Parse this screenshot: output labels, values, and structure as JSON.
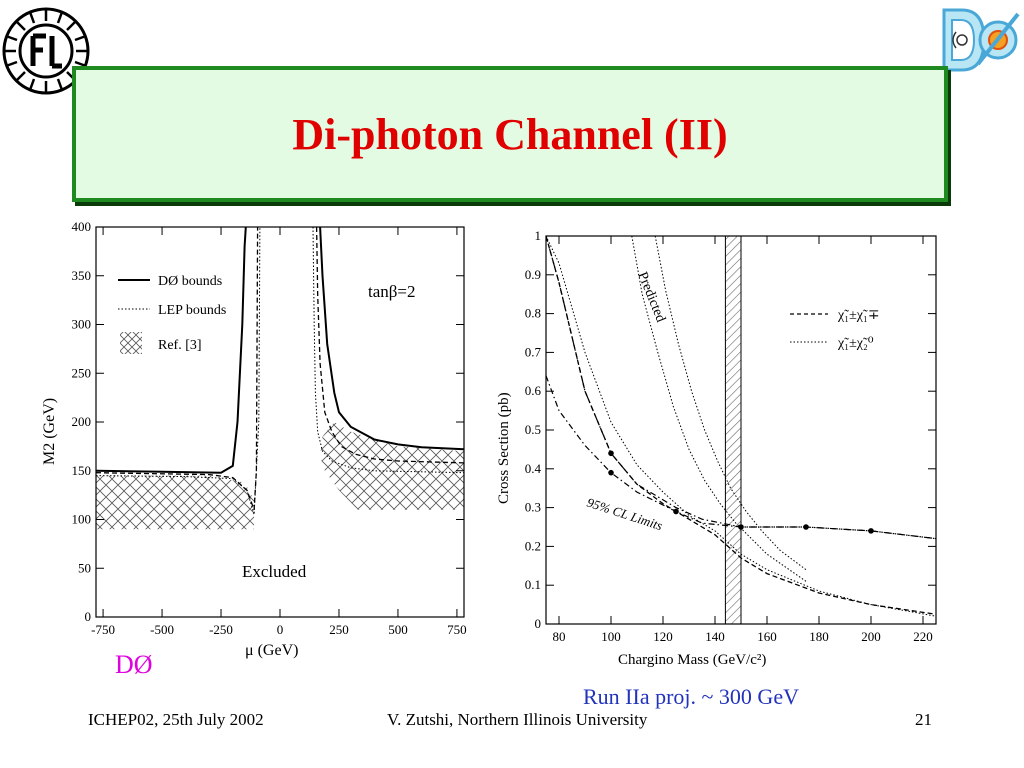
{
  "slide": {
    "title": "Di-photon Channel (II)",
    "d0_caption": "DØ",
    "run_note": "Run IIa proj. ~ 300 GeV",
    "footer_left": "ICHEP02, 25th July 2002",
    "footer_center": "V. Zutshi, Northern Illinois University",
    "page_number": "21",
    "colors": {
      "title": "#e00000",
      "title_border": "#1f8a1f",
      "title_bg": "#e2fbe2",
      "caption": "#e000e0",
      "note": "#2233bb"
    }
  },
  "chart_data": [
    {
      "type": "line",
      "xlabel": "μ (GeV)",
      "ylabel": "M2 (GeV)",
      "xlim": [
        -780,
        780
      ],
      "ylim": [
        0,
        400
      ],
      "x_ticks": [
        -750,
        -500,
        -250,
        0,
        250,
        500,
        750
      ],
      "y_ticks": [
        0,
        50,
        100,
        150,
        200,
        250,
        300,
        350,
        400
      ],
      "annotations": [
        "tanβ=2",
        "Excluded"
      ],
      "legend": [
        {
          "label": "DØ bounds",
          "style": "solid"
        },
        {
          "label": "LEP bounds",
          "style": "dotted"
        },
        {
          "label": "Ref. [3]",
          "style": "hatched"
        }
      ],
      "series": [
        {
          "style": "solid",
          "x": [
            -780,
            -500,
            -250,
            -200,
            -180,
            -160,
            -150,
            -145
          ],
          "y": [
            150,
            149,
            148,
            155,
            200,
            300,
            380,
            400
          ]
        },
        {
          "style": "solid",
          "x": [
            170,
            180,
            200,
            230,
            250,
            300,
            400,
            500,
            600,
            780
          ],
          "y": [
            400,
            350,
            280,
            230,
            210,
            195,
            182,
            177,
            174,
            172
          ]
        },
        {
          "style": "dashed",
          "x": [
            -780,
            -300,
            -200,
            -140,
            -110,
            -100,
            -95
          ],
          "y": [
            148,
            146,
            143,
            130,
            110,
            150,
            400
          ]
        },
        {
          "style": "dashed",
          "x": [
            155,
            160,
            170,
            190,
            220,
            260,
            320,
            400,
            500,
            780
          ],
          "y": [
            400,
            330,
            260,
            210,
            190,
            175,
            167,
            162,
            160,
            158
          ]
        },
        {
          "style": "dotted",
          "x": [
            -780,
            -400,
            -200,
            -140,
            -110,
            -90,
            -85
          ],
          "y": [
            145,
            144,
            142,
            130,
            105,
            200,
            400
          ]
        },
        {
          "style": "dotted",
          "x": [
            140,
            145,
            150,
            160,
            180,
            220,
            300,
            400,
            780
          ],
          "y": [
            400,
            300,
            230,
            190,
            170,
            160,
            153,
            150,
            148
          ]
        }
      ],
      "hatched_region": {
        "left": {
          "x": [
            -780,
            -300,
            -150,
            -110,
            -110,
            -780
          ],
          "y": [
            145,
            145,
            138,
            120,
            90,
            90
          ]
        },
        "right": {
          "x": [
            170,
            180,
            230,
            300,
            500,
            780,
            780,
            330,
            250,
            190
          ],
          "y": [
            165,
            185,
            200,
            190,
            175,
            170,
            110,
            110,
            130,
            150
          ]
        }
      }
    },
    {
      "type": "line",
      "xlabel": "Chargino Mass (GeV/c²)",
      "ylabel": "Cross Section (pb)",
      "xlim": [
        75,
        225
      ],
      "ylim": [
        0,
        1
      ],
      "x_ticks": [
        80,
        100,
        120,
        140,
        160,
        180,
        200,
        220
      ],
      "y_ticks": [
        0,
        0.1,
        0.2,
        0.3,
        0.4,
        0.5,
        0.6,
        0.7,
        0.8,
        0.9,
        1
      ],
      "annotations": [
        "Predicted",
        "95% CL Limits"
      ],
      "legend": [
        {
          "label": "χ̃₁±χ̃₁∓",
          "style": "dashed"
        },
        {
          "label": "χ̃₁±χ̃₂⁰",
          "style": "dotted"
        }
      ],
      "excluded_band": {
        "x_min": 144,
        "x_max": 150
      },
      "series": [
        {
          "name": "χ̃₁±χ̃₁∓",
          "style": "dashed",
          "x": [
            75,
            80,
            90,
            100,
            110,
            120,
            130,
            140,
            150,
            160,
            180,
            200,
            225
          ],
          "y": [
            1.0,
            0.88,
            0.6,
            0.44,
            0.36,
            0.31,
            0.27,
            0.23,
            0.17,
            0.13,
            0.08,
            0.05,
            0.025
          ]
        },
        {
          "name": "χ̃₁±χ̃₂⁰",
          "style": "dotted",
          "x": [
            75,
            80,
            90,
            100,
            110,
            120,
            130,
            140,
            150,
            160,
            180,
            200,
            225
          ],
          "y": [
            1.0,
            0.93,
            0.7,
            0.52,
            0.41,
            0.34,
            0.28,
            0.24,
            0.18,
            0.14,
            0.085,
            0.05,
            0.02
          ]
        },
        {
          "name": "Predicted",
          "style": "dotted",
          "x": [
            108,
            112,
            118,
            124,
            130,
            136,
            142,
            148,
            154,
            160,
            175
          ],
          "y": [
            1.0,
            0.85,
            0.7,
            0.56,
            0.45,
            0.37,
            0.31,
            0.26,
            0.22,
            0.18,
            0.11
          ]
        },
        {
          "name": "Predicted",
          "style": "dotted",
          "x": [
            117,
            121,
            126,
            131,
            136,
            141,
            146,
            152,
            158,
            165,
            175
          ],
          "y": [
            1.0,
            0.86,
            0.72,
            0.6,
            0.5,
            0.42,
            0.35,
            0.29,
            0.24,
            0.19,
            0.14
          ]
        },
        {
          "name": "95% CL Limits",
          "style": "dash-dot",
          "x": [
            75,
            80,
            90,
            100,
            110,
            125,
            135,
            150,
            175,
            200,
            225
          ],
          "y": [
            0.64,
            0.55,
            0.46,
            0.39,
            0.34,
            0.29,
            0.26,
            0.25,
            0.25,
            0.24,
            0.22
          ]
        },
        {
          "name": "95% CL Limits",
          "style": "dash-dot",
          "x": [
            75,
            80,
            90,
            100,
            110,
            125,
            135,
            150,
            175,
            200,
            225
          ],
          "y": [
            1.0,
            0.88,
            0.6,
            0.44,
            0.36,
            0.3,
            0.27,
            0.25,
            0.25,
            0.24,
            0.22
          ]
        }
      ],
      "markers": {
        "x": [
          100,
          125,
          150,
          175,
          200
        ],
        "y": [
          0.44,
          0.29,
          0.25,
          0.25,
          0.24
        ]
      },
      "markers_lower": {
        "x": [
          100
        ],
        "y": [
          0.39
        ]
      }
    }
  ]
}
